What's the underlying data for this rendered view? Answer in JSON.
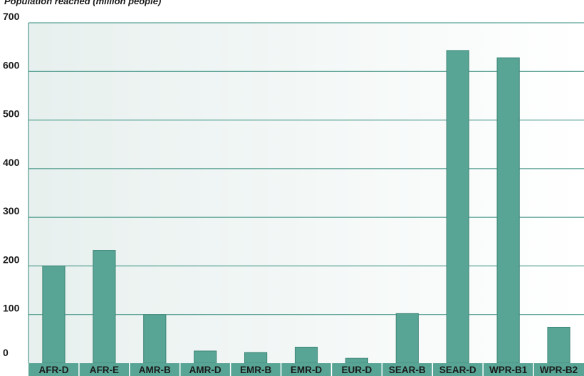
{
  "chart_data": {
    "type": "bar",
    "ylabel": "Population reached (million people)",
    "categories": [
      "AFR-D",
      "AFR-E",
      "AMR-B",
      "AMR-D",
      "EMR-B",
      "EMR-D",
      "EUR-D",
      "SEAR-B",
      "SEAR-D",
      "WPR-B1",
      "WPR-B2"
    ],
    "values": [
      200,
      232,
      100,
      25,
      22,
      33,
      10,
      102,
      643,
      628,
      74
    ],
    "ylim": [
      0,
      700
    ],
    "yticks": [
      0,
      100,
      200,
      300,
      400,
      500,
      600,
      700
    ],
    "grid": true,
    "colors": {
      "bar": "#58a596",
      "bar_edge": "#3e8576",
      "grid": "#2f8a78",
      "category_band": "#58a596",
      "background_left": "#e7f0ee",
      "background_right": "#ffffff"
    }
  }
}
